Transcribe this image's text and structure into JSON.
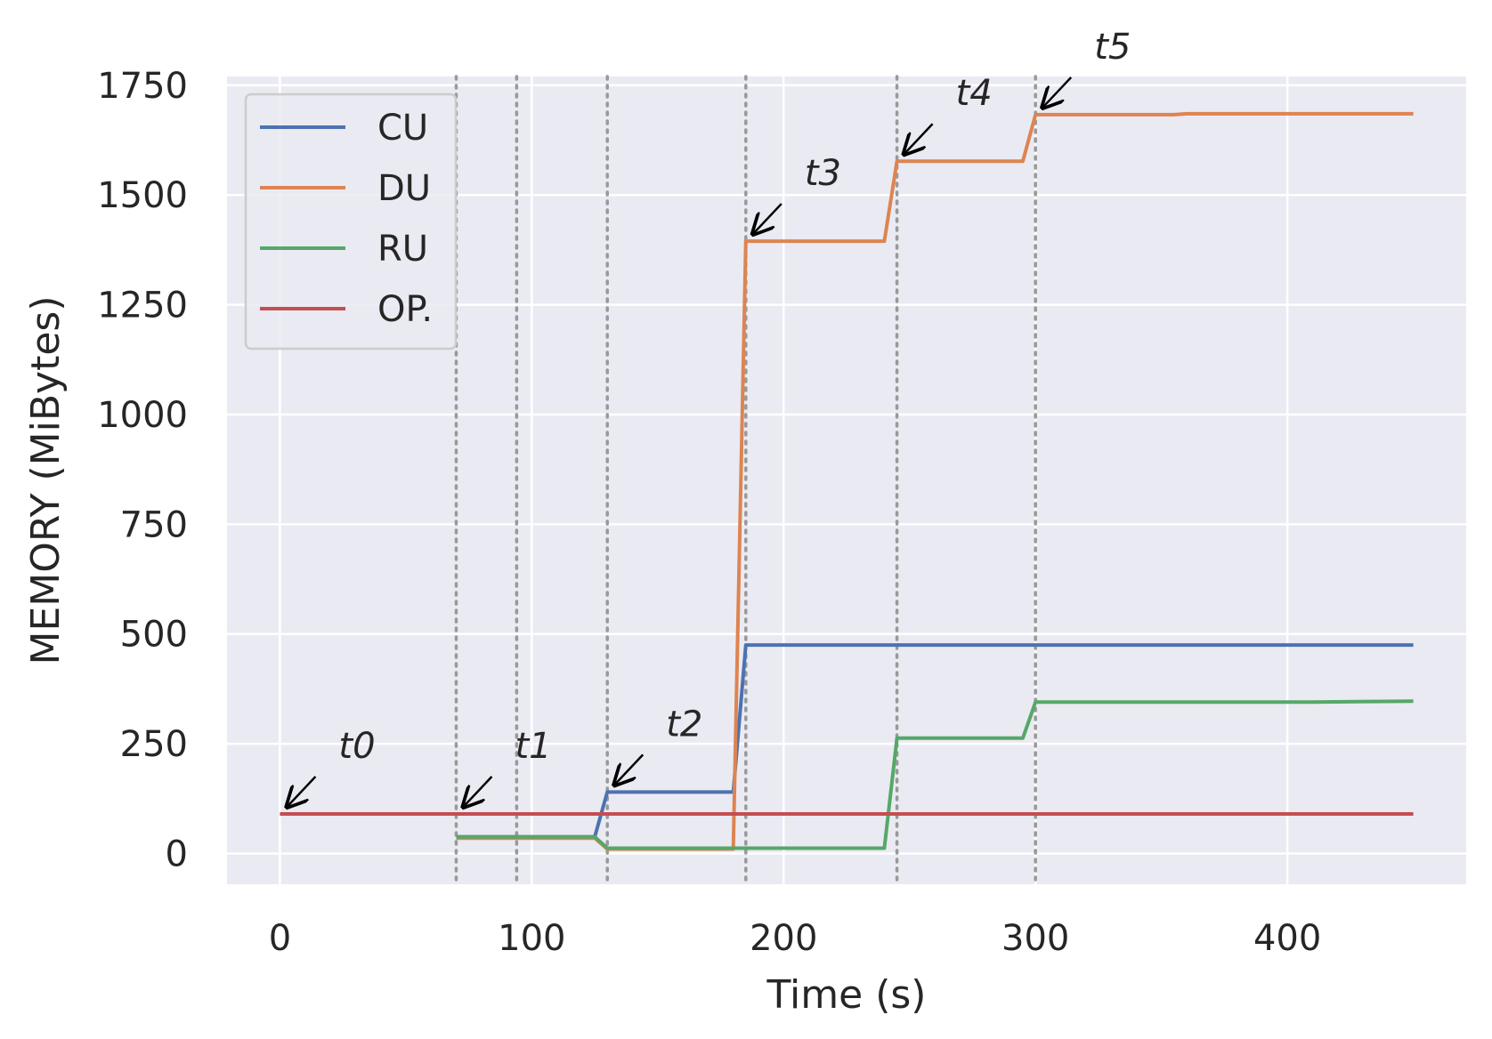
{
  "chart_data": {
    "type": "line",
    "xlabel": "Time (s)",
    "ylabel": "MEMORY (MiBytes)",
    "xlim": [
      -21,
      471
    ],
    "ylim": [
      -70,
      1770
    ],
    "xticks": [
      0,
      100,
      200,
      300,
      400
    ],
    "yticks": [
      0,
      250,
      500,
      750,
      1000,
      1250,
      1500,
      1750
    ],
    "grid": true,
    "legend_position": "top-left",
    "background": "#EAEAF2",
    "series": [
      {
        "name": "CU",
        "color": "#4C72B0",
        "x": [
          70,
          125,
          130,
          180,
          185,
          360,
          410,
          450
        ],
        "y": [
          38,
          38,
          140,
          140,
          475,
          475,
          475,
          475
        ]
      },
      {
        "name": "DU",
        "color": "#DD8452",
        "x": [
          70,
          125,
          130,
          180,
          185,
          240,
          245,
          295,
          300,
          355,
          360,
          450
        ],
        "y": [
          35,
          35,
          10,
          10,
          1395,
          1395,
          1577,
          1577,
          1683,
          1683,
          1685,
          1685
        ]
      },
      {
        "name": "RU",
        "color": "#55A868",
        "x": [
          70,
          125,
          130,
          240,
          245,
          295,
          300,
          410,
          450
        ],
        "y": [
          38,
          38,
          12,
          12,
          263,
          263,
          345,
          345,
          347
        ]
      },
      {
        "name": "OP.",
        "color": "#C44E52",
        "x": [
          0,
          450
        ],
        "y": [
          90,
          90
        ]
      }
    ],
    "vlines": [
      70,
      94,
      130,
      185,
      245,
      300
    ],
    "annotations": [
      {
        "text": "t0",
        "x": 0,
        "y": 90
      },
      {
        "text": "t1",
        "x": 70,
        "y": 90
      },
      {
        "text": "t2",
        "x": 130,
        "y": 140
      },
      {
        "text": "t3",
        "x": 185,
        "y": 1395
      },
      {
        "text": "t4",
        "x": 245,
        "y": 1577
      },
      {
        "text": "t5",
        "x": 300,
        "y": 1683
      }
    ]
  }
}
